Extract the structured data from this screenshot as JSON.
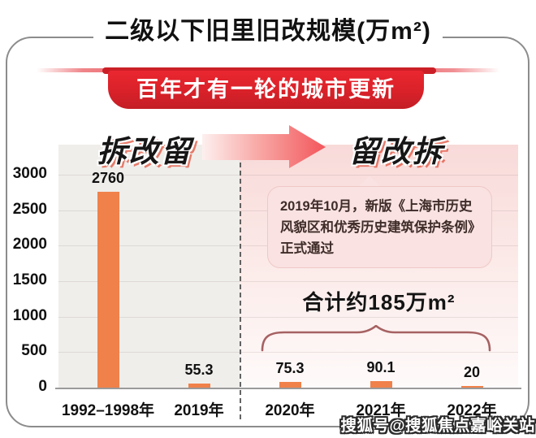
{
  "header": {
    "title": "二级以下旧里旧改规模(万m²)",
    "ribbon": "百年才有一轮的城市更新"
  },
  "transition": {
    "left": "拆改留",
    "right": "留改拆"
  },
  "annotation": {
    "text": "2019年10月，新版《上海市历史风貌区和优秀历史建筑保护条例》正式通过"
  },
  "total": {
    "label": "合计约185万m²"
  },
  "watermark": {
    "text": "搜狐号@搜狐焦点嘉峪关站"
  },
  "colors": {
    "bar": "#f0814a",
    "ribbon_red": "#d92129",
    "arrow_red": "#f3565b",
    "panel_gray": "#efeeeb",
    "panel_pink": "#f8dad9",
    "callout_pink": "#f9e2e1",
    "brace": "#a66161",
    "card_border": "#8c8c8c"
  },
  "chart_data": {
    "type": "bar",
    "title": "二级以下旧里旧改规模(万m²)",
    "subtitle": "百年才有一轮的城市更新",
    "categories": [
      "1992–1998年",
      "2019年",
      "2020年",
      "2021年",
      "2022年"
    ],
    "values": [
      2760,
      55.3,
      75.3,
      90.1,
      20
    ],
    "value_labels": [
      "2760",
      "55.3",
      "75.3",
      "90.1",
      "20"
    ],
    "xlabel": "",
    "ylabel": "",
    "ylim": [
      0,
      3000
    ],
    "y_ticks": [
      0,
      500,
      1000,
      1500,
      2000,
      2500,
      3000
    ],
    "grid": true,
    "legend": "none",
    "bar_color": "#f0814a",
    "phase_left_label": "拆改留",
    "phase_right_label": "留改拆",
    "divider_between": [
      "2019年",
      "2020年"
    ],
    "right_group_annotation": "2019年10月，新版《上海市历史风貌区和优秀历史建筑保护条例》正式通过",
    "right_group_total": "合计约185万m²"
  }
}
